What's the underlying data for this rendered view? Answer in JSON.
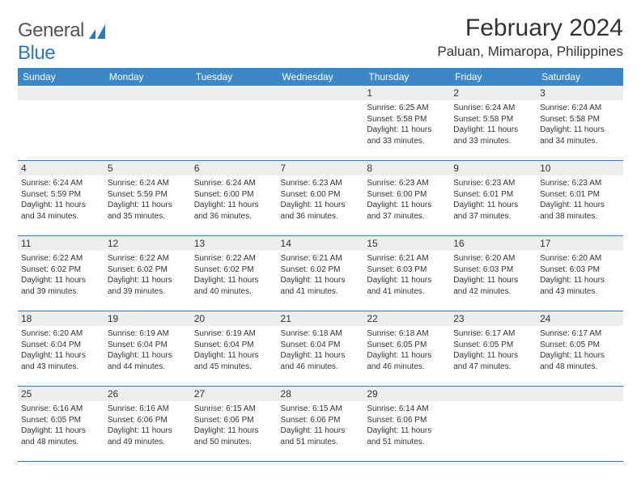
{
  "brand": {
    "part1": "General",
    "part2": "Blue"
  },
  "title": "February 2024",
  "location": "Paluan, Mimaropa, Philippines",
  "colors": {
    "header_bg": "#3b87c8",
    "accent": "#2a7ac0",
    "daynum_bg": "#eceeee",
    "text": "#333333"
  },
  "weekdays": [
    "Sunday",
    "Monday",
    "Tuesday",
    "Wednesday",
    "Thursday",
    "Friday",
    "Saturday"
  ],
  "weeks": [
    [
      {
        "empty": true
      },
      {
        "empty": true
      },
      {
        "empty": true
      },
      {
        "empty": true
      },
      {
        "day": "1",
        "sunrise": "Sunrise: 6:25 AM",
        "sunset": "Sunset: 5:58 PM",
        "daylight1": "Daylight: 11 hours",
        "daylight2": "and 33 minutes."
      },
      {
        "day": "2",
        "sunrise": "Sunrise: 6:24 AM",
        "sunset": "Sunset: 5:58 PM",
        "daylight1": "Daylight: 11 hours",
        "daylight2": "and 33 minutes."
      },
      {
        "day": "3",
        "sunrise": "Sunrise: 6:24 AM",
        "sunset": "Sunset: 5:58 PM",
        "daylight1": "Daylight: 11 hours",
        "daylight2": "and 34 minutes."
      }
    ],
    [
      {
        "day": "4",
        "sunrise": "Sunrise: 6:24 AM",
        "sunset": "Sunset: 5:59 PM",
        "daylight1": "Daylight: 11 hours",
        "daylight2": "and 34 minutes."
      },
      {
        "day": "5",
        "sunrise": "Sunrise: 6:24 AM",
        "sunset": "Sunset: 5:59 PM",
        "daylight1": "Daylight: 11 hours",
        "daylight2": "and 35 minutes."
      },
      {
        "day": "6",
        "sunrise": "Sunrise: 6:24 AM",
        "sunset": "Sunset: 6:00 PM",
        "daylight1": "Daylight: 11 hours",
        "daylight2": "and 36 minutes."
      },
      {
        "day": "7",
        "sunrise": "Sunrise: 6:23 AM",
        "sunset": "Sunset: 6:00 PM",
        "daylight1": "Daylight: 11 hours",
        "daylight2": "and 36 minutes."
      },
      {
        "day": "8",
        "sunrise": "Sunrise: 6:23 AM",
        "sunset": "Sunset: 6:00 PM",
        "daylight1": "Daylight: 11 hours",
        "daylight2": "and 37 minutes."
      },
      {
        "day": "9",
        "sunrise": "Sunrise: 6:23 AM",
        "sunset": "Sunset: 6:01 PM",
        "daylight1": "Daylight: 11 hours",
        "daylight2": "and 37 minutes."
      },
      {
        "day": "10",
        "sunrise": "Sunrise: 6:23 AM",
        "sunset": "Sunset: 6:01 PM",
        "daylight1": "Daylight: 11 hours",
        "daylight2": "and 38 minutes."
      }
    ],
    [
      {
        "day": "11",
        "sunrise": "Sunrise: 6:22 AM",
        "sunset": "Sunset: 6:02 PM",
        "daylight1": "Daylight: 11 hours",
        "daylight2": "and 39 minutes."
      },
      {
        "day": "12",
        "sunrise": "Sunrise: 6:22 AM",
        "sunset": "Sunset: 6:02 PM",
        "daylight1": "Daylight: 11 hours",
        "daylight2": "and 39 minutes."
      },
      {
        "day": "13",
        "sunrise": "Sunrise: 6:22 AM",
        "sunset": "Sunset: 6:02 PM",
        "daylight1": "Daylight: 11 hours",
        "daylight2": "and 40 minutes."
      },
      {
        "day": "14",
        "sunrise": "Sunrise: 6:21 AM",
        "sunset": "Sunset: 6:02 PM",
        "daylight1": "Daylight: 11 hours",
        "daylight2": "and 41 minutes."
      },
      {
        "day": "15",
        "sunrise": "Sunrise: 6:21 AM",
        "sunset": "Sunset: 6:03 PM",
        "daylight1": "Daylight: 11 hours",
        "daylight2": "and 41 minutes."
      },
      {
        "day": "16",
        "sunrise": "Sunrise: 6:20 AM",
        "sunset": "Sunset: 6:03 PM",
        "daylight1": "Daylight: 11 hours",
        "daylight2": "and 42 minutes."
      },
      {
        "day": "17",
        "sunrise": "Sunrise: 6:20 AM",
        "sunset": "Sunset: 6:03 PM",
        "daylight1": "Daylight: 11 hours",
        "daylight2": "and 43 minutes."
      }
    ],
    [
      {
        "day": "18",
        "sunrise": "Sunrise: 6:20 AM",
        "sunset": "Sunset: 6:04 PM",
        "daylight1": "Daylight: 11 hours",
        "daylight2": "and 43 minutes."
      },
      {
        "day": "19",
        "sunrise": "Sunrise: 6:19 AM",
        "sunset": "Sunset: 6:04 PM",
        "daylight1": "Daylight: 11 hours",
        "daylight2": "and 44 minutes."
      },
      {
        "day": "20",
        "sunrise": "Sunrise: 6:19 AM",
        "sunset": "Sunset: 6:04 PM",
        "daylight1": "Daylight: 11 hours",
        "daylight2": "and 45 minutes."
      },
      {
        "day": "21",
        "sunrise": "Sunrise: 6:18 AM",
        "sunset": "Sunset: 6:04 PM",
        "daylight1": "Daylight: 11 hours",
        "daylight2": "and 46 minutes."
      },
      {
        "day": "22",
        "sunrise": "Sunrise: 6:18 AM",
        "sunset": "Sunset: 6:05 PM",
        "daylight1": "Daylight: 11 hours",
        "daylight2": "and 46 minutes."
      },
      {
        "day": "23",
        "sunrise": "Sunrise: 6:17 AM",
        "sunset": "Sunset: 6:05 PM",
        "daylight1": "Daylight: 11 hours",
        "daylight2": "and 47 minutes."
      },
      {
        "day": "24",
        "sunrise": "Sunrise: 6:17 AM",
        "sunset": "Sunset: 6:05 PM",
        "daylight1": "Daylight: 11 hours",
        "daylight2": "and 48 minutes."
      }
    ],
    [
      {
        "day": "25",
        "sunrise": "Sunrise: 6:16 AM",
        "sunset": "Sunset: 6:05 PM",
        "daylight1": "Daylight: 11 hours",
        "daylight2": "and 48 minutes."
      },
      {
        "day": "26",
        "sunrise": "Sunrise: 6:16 AM",
        "sunset": "Sunset: 6:06 PM",
        "daylight1": "Daylight: 11 hours",
        "daylight2": "and 49 minutes."
      },
      {
        "day": "27",
        "sunrise": "Sunrise: 6:15 AM",
        "sunset": "Sunset: 6:06 PM",
        "daylight1": "Daylight: 11 hours",
        "daylight2": "and 50 minutes."
      },
      {
        "day": "28",
        "sunrise": "Sunrise: 6:15 AM",
        "sunset": "Sunset: 6:06 PM",
        "daylight1": "Daylight: 11 hours",
        "daylight2": "and 51 minutes."
      },
      {
        "day": "29",
        "sunrise": "Sunrise: 6:14 AM",
        "sunset": "Sunset: 6:06 PM",
        "daylight1": "Daylight: 11 hours",
        "daylight2": "and 51 minutes."
      },
      {
        "empty": true
      },
      {
        "empty": true
      }
    ]
  ]
}
